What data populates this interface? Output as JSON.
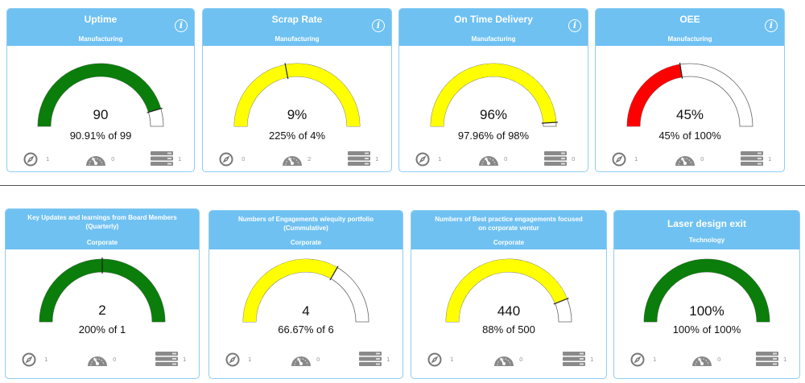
{
  "colors": {
    "header_bg": "#6fc1f2",
    "card_border": "#8fcdf2",
    "green": "#0a7d0a",
    "yellow": "#ffff00",
    "red": "#ff0000",
    "gauge_outline": "#666666"
  },
  "cards": [
    {
      "title": "Uptime",
      "subtitle": "Manufacturing",
      "info_icon": "info-icon",
      "has_info": true,
      "value": "90",
      "detail": "90.91% of 99",
      "gauge": {
        "fill_fraction": 0.9091,
        "color": "green"
      },
      "footer": {
        "compass_count": "1",
        "gauge_count": "0",
        "list_count": "1"
      }
    },
    {
      "title": "Scrap Rate",
      "subtitle": "Manufacturing",
      "info_icon": "info-icon",
      "has_info": true,
      "value": "9%",
      "detail": "225% of 4%",
      "gauge": {
        "fill_fraction": 1.0,
        "color": "yellow",
        "target_fraction": 0.44
      },
      "footer": {
        "compass_count": "0",
        "gauge_count": "2",
        "list_count": "1"
      }
    },
    {
      "title": "On Time Delivery",
      "subtitle": "Manufacturing",
      "info_icon": "info-icon",
      "has_info": true,
      "value": "96%",
      "detail": "97.96% of 98%",
      "gauge": {
        "fill_fraction": 0.9796,
        "color": "yellow"
      },
      "footer": {
        "compass_count": "1",
        "gauge_count": "0",
        "list_count": "0"
      }
    },
    {
      "title": "OEE",
      "subtitle": "Manufacturing",
      "info_icon": "info-icon",
      "has_info": true,
      "value": "45%",
      "detail": "45% of 100%",
      "gauge": {
        "fill_fraction": 0.45,
        "color": "red"
      },
      "footer": {
        "compass_count": "1",
        "gauge_count": "0",
        "list_count": "1"
      }
    },
    {
      "title": "Key Updates and learnings from Board Members (Quarterly)",
      "subtitle": "Corporate",
      "has_info": false,
      "value": "2",
      "detail": "200% of 1",
      "gauge": {
        "fill_fraction": 1.0,
        "color": "green",
        "target_fraction": 0.5
      },
      "footer": {
        "compass_count": "1",
        "gauge_count": "0",
        "list_count": "1"
      }
    },
    {
      "title": "Numbers of Engagements w/equity portfolio (Cummulative)",
      "subtitle": "Corporate",
      "has_info": false,
      "value": "4",
      "detail": "66.67% of 6",
      "gauge": {
        "fill_fraction": 0.6667,
        "color": "yellow"
      },
      "footer": {
        "compass_count": "1",
        "gauge_count": "0",
        "list_count": "1"
      }
    },
    {
      "title": "Numbers of Best practice engagements focused on corporate ventur",
      "subtitle": "Corporate",
      "has_info": false,
      "value": "440",
      "detail": "88% of 500",
      "gauge": {
        "fill_fraction": 0.88,
        "color": "yellow"
      },
      "footer": {
        "compass_count": "1",
        "gauge_count": "0",
        "list_count": "1"
      }
    },
    {
      "title": "Laser design exit",
      "subtitle": "Technology",
      "has_info": false,
      "value": "100%",
      "detail": "100% of 100%",
      "gauge": {
        "fill_fraction": 1.0,
        "color": "green"
      },
      "footer": {
        "compass_count": "1",
        "gauge_count": "0",
        "list_count": "1"
      }
    }
  ]
}
